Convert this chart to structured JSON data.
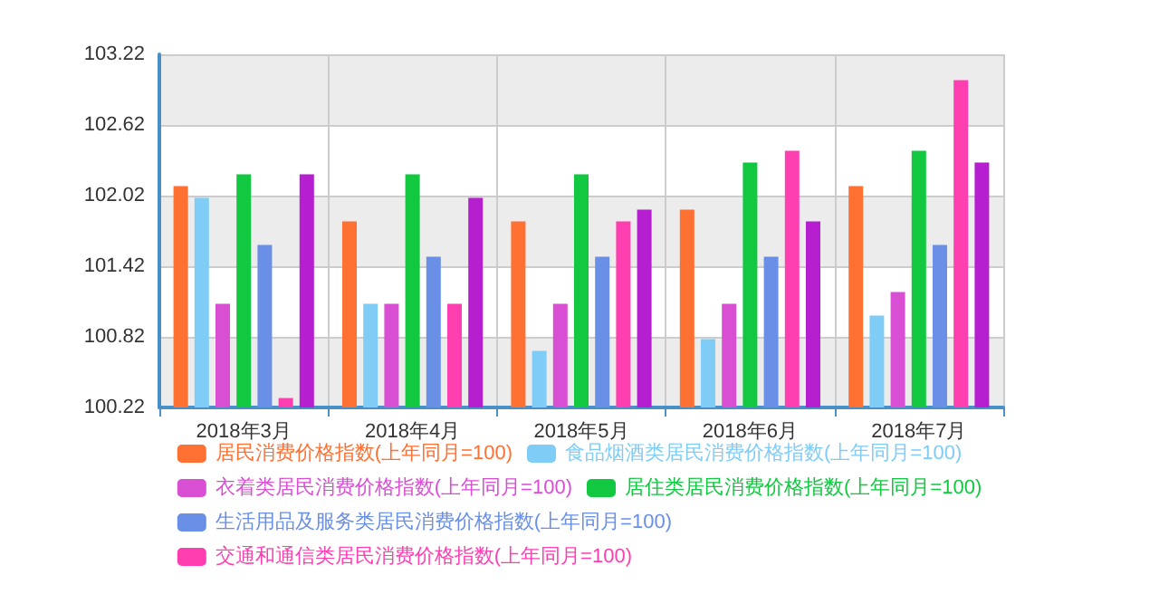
{
  "chart_data": {
    "type": "bar",
    "categories": [
      "2018年3月",
      "2018年4月",
      "2018年5月",
      "2018年6月",
      "2018年7月"
    ],
    "series": [
      {
        "name": "居民消费价格指数(上年同月=100)",
        "color": "#ff7033",
        "values": [
          102.1,
          101.8,
          101.8,
          101.9,
          102.1
        ]
      },
      {
        "name": "食品烟酒类居民消费价格指数(上年同月=100)",
        "color": "#7fcdf7",
        "values": [
          102.0,
          101.1,
          100.7,
          100.8,
          101.0
        ]
      },
      {
        "name": "衣着类居民消费价格指数(上年同月=100)",
        "color": "#d94fd4",
        "values": [
          101.1,
          101.1,
          101.1,
          101.1,
          101.2
        ]
      },
      {
        "name": "居住类居民消费价格指数(上年同月=100)",
        "color": "#12c840",
        "values": [
          102.2,
          102.2,
          102.2,
          102.3,
          102.4
        ]
      },
      {
        "name": "生活用品及服务类居民消费价格指数(上年同月=100)",
        "color": "#6a8fe6",
        "values": [
          101.6,
          101.5,
          101.5,
          101.5,
          101.6
        ]
      },
      {
        "name": "交通和通信类居民消费价格指数(上年同月=100)",
        "color": "#ff3fb0",
        "values": [
          100.3,
          101.1,
          101.8,
          102.4,
          103.0
        ]
      },
      {
        "color": "#b51fd0",
        "values": [
          102.2,
          102.0,
          101.9,
          101.8,
          102.3
        ]
      }
    ],
    "ylim": [
      100.22,
      103.22
    ],
    "yticks": [
      100.22,
      100.82,
      101.42,
      102.02,
      102.62,
      103.22
    ],
    "grid": true,
    "legend": "bottom"
  }
}
